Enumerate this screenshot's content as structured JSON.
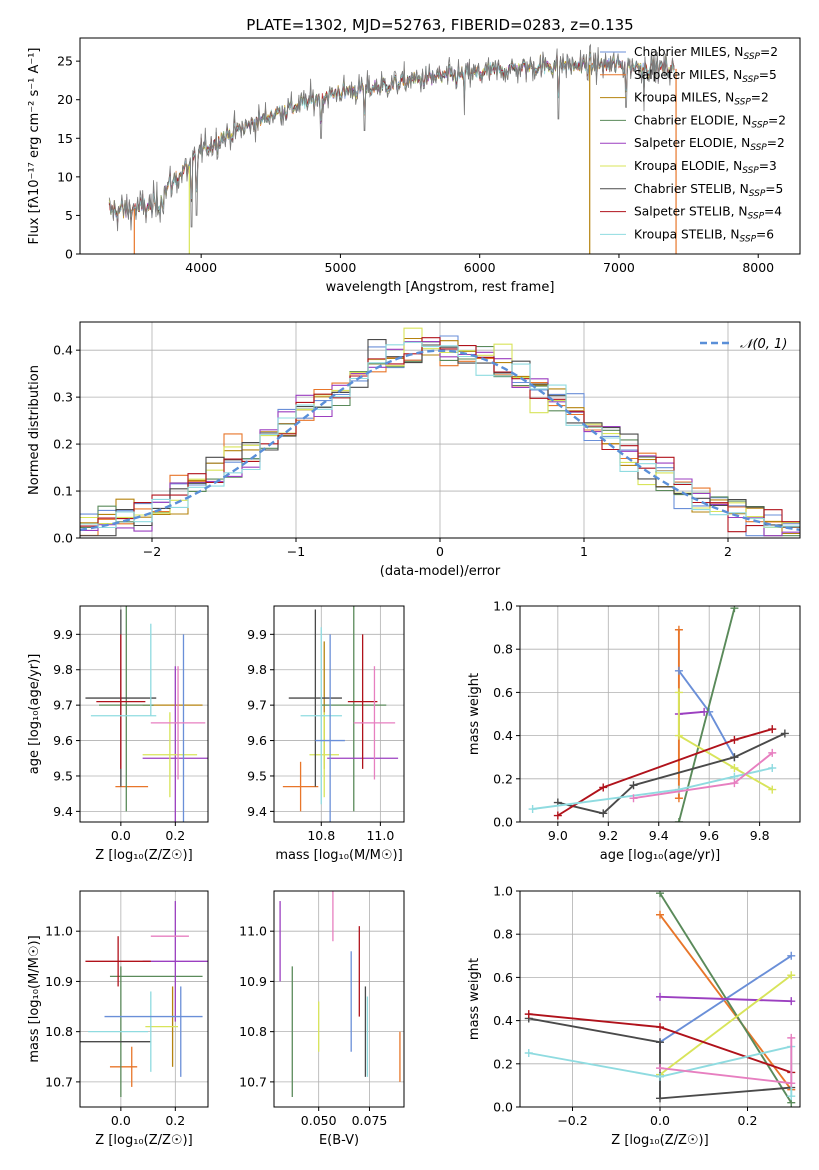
{
  "figure": {
    "title": "PLATE=1302, MJD=52763, FIBERID=0283, z=0.135"
  },
  "models": [
    {
      "name": "Chabrier MILES",
      "nssp": "2",
      "color": "#6a8fd8"
    },
    {
      "name": "Salpeter MILES",
      "nssp": "5",
      "color": "#e8762a"
    },
    {
      "name": "Kroupa MILES",
      "nssp": "2",
      "color": "#b5830e"
    },
    {
      "name": "Chabrier ELODIE",
      "nssp": "2",
      "color": "#5a8a5a"
    },
    {
      "name": "Salpeter ELODIE",
      "nssp": "2",
      "color": "#9b3fc0"
    },
    {
      "name": "Kroupa ELODIE",
      "nssp": "3",
      "color": "#d8e45a"
    },
    {
      "name": "Chabrier STELIB",
      "nssp": "5",
      "color": "#4a4a4a"
    },
    {
      "name": "Salpeter STELIB",
      "nssp": "4",
      "color": "#b0121b"
    },
    {
      "name": "Kroupa STELIB",
      "nssp": "6",
      "color": "#8fdbe0"
    }
  ],
  "chart_data": [
    {
      "id": "spectrum",
      "type": "line",
      "xlabel": "wavelength [Angstrom, rest frame]",
      "ylabel": "Flux [fλ10⁻¹⁷ erg cm⁻² s⁻¹ A⁻¹]",
      "xlim": [
        3130,
        8300
      ],
      "ylim": [
        0,
        28
      ],
      "xticks": [
        4000,
        5000,
        6000,
        7000,
        8000
      ],
      "yticks": [
        0,
        5,
        10,
        15,
        20,
        25
      ],
      "legend_position": "top-right",
      "grid": false,
      "continuum_x": [
        3340,
        3600,
        3700,
        3750,
        3950,
        4000,
        4200,
        4500,
        4800,
        5000,
        5200,
        5500,
        6000,
        6500,
        6800,
        7000,
        7400
      ],
      "continuum_y": [
        5.5,
        6.0,
        6.5,
        8.5,
        12.0,
        13.5,
        15.5,
        18.0,
        20.0,
        21.0,
        21.5,
        22.5,
        23.5,
        24.5,
        24.5,
        24.5,
        24.0
      ],
      "observed_noise": 1.6,
      "deep_absorption": [
        {
          "x": 3933,
          "y": 3.5
        },
        {
          "x": 3968,
          "y": 5.0
        },
        {
          "x": 4861,
          "y": 15.0
        },
        {
          "x": 5175,
          "y": 16.0
        },
        {
          "x": 5890,
          "y": 18.0
        },
        {
          "x": 6563,
          "y": 17.5
        },
        {
          "x": 7050,
          "y": 19.0
        },
        {
          "x": 7180,
          "y": 18.5
        }
      ],
      "spikes_to_zero": [
        {
          "x": 3520,
          "color": "#e8762a"
        },
        {
          "x": 3915,
          "color": "#d8e45a"
        },
        {
          "x": 6790,
          "color": "#b5830e"
        },
        {
          "x": 7410,
          "color": "#e8762a"
        }
      ]
    },
    {
      "id": "residuals",
      "type": "histogram",
      "xlabel": "(data-model)/error",
      "ylabel": "Normed distribution",
      "xlim": [
        -2.5,
        2.5
      ],
      "ylim": [
        0,
        0.46
      ],
      "xticks": [
        -2,
        -1,
        0,
        1,
        2
      ],
      "yticks": [
        0.0,
        0.1,
        0.2,
        0.3,
        0.4
      ],
      "grid": true,
      "legend_position": "top-right",
      "reference_label": "𝒩(0, 1)",
      "reference_color": "#5a8fd8",
      "bins": 40,
      "jitter": 0.03
    },
    {
      "id": "age_vs_Z",
      "type": "errorbar",
      "xlabel": "Z [log₁₀(Z/Z☉)]",
      "ylabel": "age  [log₁₀(age/yr)]",
      "xlim": [
        -0.15,
        0.32
      ],
      "ylim": [
        9.37,
        9.98
      ],
      "xticks": [
        0.0,
        0.2
      ],
      "yticks": [
        9.4,
        9.5,
        9.6,
        9.7,
        9.8,
        9.9
      ],
      "grid": true,
      "points": [
        {
          "x": 0.04,
          "y": 9.47,
          "xerr": 0.06,
          "yerr": 0.0,
          "color": "#e8762a"
        },
        {
          "x": 0.19,
          "y": 9.7,
          "xerr": 0.11,
          "yerr": 0.0,
          "color": "#b5830e"
        },
        {
          "x": 0.02,
          "y": 9.7,
          "xerr": 0.1,
          "yerr": 0.3,
          "color": "#5a8a5a"
        },
        {
          "x": 0.2,
          "y": 9.55,
          "xerr": 0.12,
          "yerr": 0.26,
          "color": "#9b3fc0"
        },
        {
          "x": 0.18,
          "y": 9.56,
          "xerr": 0.1,
          "yerr": 0.12,
          "color": "#d8e45a"
        },
        {
          "x": 0.0,
          "y": 9.72,
          "xerr": 0.13,
          "yerr": 0.25,
          "color": "#4a4a4a"
        },
        {
          "x": 0.0,
          "y": 9.71,
          "xerr": 0.09,
          "yerr": 0.19,
          "color": "#b0121b"
        },
        {
          "x": 0.01,
          "y": 9.67,
          "xerr": 0.12,
          "yerr": 0.0,
          "color": "#8fdbe0"
        },
        {
          "x": 0.11,
          "y": 9.8,
          "xerr": 0.0,
          "yerr": 0.13,
          "color": "#8fdbe0"
        },
        {
          "x": 0.23,
          "y": 9.55,
          "xerr": 0.0,
          "yerr": 0.35,
          "color": "#6a8fd8"
        },
        {
          "x": 0.21,
          "y": 9.65,
          "xerr": 0.1,
          "yerr": 0.16,
          "color": "#e77fc0"
        }
      ]
    },
    {
      "id": "age_vs_mass",
      "type": "errorbar",
      "xlabel": "mass [log₁₀(M/M☉)]",
      "ylabel": "",
      "xlim": [
        10.64,
        11.08
      ],
      "ylim": [
        9.37,
        9.98
      ],
      "xticks": [
        10.8,
        11.0
      ],
      "yticks": [
        9.4,
        9.5,
        9.6,
        9.7,
        9.8,
        9.9
      ],
      "grid": true,
      "points": [
        {
          "x": 10.73,
          "y": 9.47,
          "xerr": 0.06,
          "yerr": 0.07,
          "color": "#e8762a"
        },
        {
          "x": 10.81,
          "y": 9.7,
          "xerr": 0.0,
          "yerr": 0.18,
          "color": "#b5830e"
        },
        {
          "x": 10.91,
          "y": 9.7,
          "xerr": 0.11,
          "yerr": 0.3,
          "color": "#5a8a5a"
        },
        {
          "x": 10.94,
          "y": 9.55,
          "xerr": 0.12,
          "yerr": 0.0,
          "color": "#9b3fc0"
        },
        {
          "x": 10.81,
          "y": 9.56,
          "xerr": 0.05,
          "yerr": 0.12,
          "color": "#d8e45a"
        },
        {
          "x": 10.78,
          "y": 9.72,
          "xerr": 0.09,
          "yerr": 0.25,
          "color": "#4a4a4a"
        },
        {
          "x": 10.94,
          "y": 9.71,
          "xerr": 0.05,
          "yerr": 0.19,
          "color": "#b0121b"
        },
        {
          "x": 10.8,
          "y": 9.67,
          "xerr": 0.07,
          "yerr": 0.25,
          "color": "#8fdbe0"
        },
        {
          "x": 10.83,
          "y": 9.6,
          "xerr": 0.05,
          "yerr": 0.3,
          "color": "#6a8fd8"
        },
        {
          "x": 10.98,
          "y": 9.65,
          "xerr": 0.07,
          "yerr": 0.16,
          "color": "#e77fc0"
        }
      ]
    },
    {
      "id": "weight_vs_age",
      "type": "line",
      "xlabel": "age  [log₁₀(age/yr)]",
      "ylabel": "mass weight",
      "xlim": [
        8.85,
        9.96
      ],
      "ylim": [
        0,
        1
      ],
      "xticks": [
        9.0,
        9.2,
        9.4,
        9.6,
        9.8
      ],
      "yticks": [
        0.0,
        0.2,
        0.4,
        0.6,
        0.8,
        1.0
      ],
      "grid": true,
      "series": [
        {
          "color": "#e8762a",
          "x": [
            9.48,
            9.48
          ],
          "y": [
            0.89,
            0.11
          ]
        },
        {
          "color": "#6a8fd8",
          "x": [
            9.48,
            9.6,
            9.7
          ],
          "y": [
            0.7,
            0.51,
            0.3
          ]
        },
        {
          "color": "#5a8a5a",
          "x": [
            9.48,
            9.7
          ],
          "y": [
            0.0,
            0.99
          ]
        },
        {
          "color": "#9b3fc0",
          "x": [
            9.48,
            9.58
          ],
          "y": [
            0.5,
            0.51
          ]
        },
        {
          "color": "#d8e45a",
          "x": [
            9.48,
            9.48,
            9.7,
            9.85
          ],
          "y": [
            0.6,
            0.4,
            0.25,
            0.15
          ]
        },
        {
          "color": "#4a4a4a",
          "x": [
            9.0,
            9.18,
            9.3,
            9.7,
            9.9
          ],
          "y": [
            0.09,
            0.04,
            0.17,
            0.3,
            0.41
          ]
        },
        {
          "color": "#b0121b",
          "x": [
            9.0,
            9.18,
            9.7,
            9.85
          ],
          "y": [
            0.03,
            0.16,
            0.38,
            0.43
          ]
        },
        {
          "color": "#8fdbe0",
          "x": [
            8.9,
            9.48,
            9.7,
            9.85
          ],
          "y": [
            0.06,
            0.15,
            0.21,
            0.25
          ]
        },
        {
          "color": "#e77fc0",
          "x": [
            9.3,
            9.7,
            9.85
          ],
          "y": [
            0.11,
            0.18,
            0.32
          ]
        }
      ]
    },
    {
      "id": "mass_vs_Z",
      "type": "errorbar",
      "xlabel": "Z [log₁₀(Z/Z☉)]",
      "ylabel": "mass [log₁₀(M/M☉)]",
      "xlim": [
        -0.15,
        0.32
      ],
      "ylim": [
        10.65,
        11.08
      ],
      "xticks": [
        0.0,
        0.2
      ],
      "yticks": [
        10.7,
        10.8,
        10.9,
        11.0
      ],
      "grid": true,
      "points": [
        {
          "x": 0.01,
          "y": 10.73,
          "xerr": 0.05,
          "yerr": 0.0,
          "color": "#e8762a"
        },
        {
          "x": 0.04,
          "y": 10.73,
          "xerr": 0.0,
          "yerr": 0.04,
          "color": "#e8762a"
        },
        {
          "x": 0.19,
          "y": 10.81,
          "xerr": 0.0,
          "yerr": 0.08,
          "color": "#b5830e"
        },
        {
          "x": 0.13,
          "y": 10.91,
          "xerr": 0.17,
          "yerr": 0.0,
          "color": "#5a8a5a"
        },
        {
          "x": 0.0,
          "y": 10.8,
          "xerr": 0.0,
          "yerr": 0.13,
          "color": "#5a8a5a"
        },
        {
          "x": 0.2,
          "y": 10.94,
          "xerr": 0.12,
          "yerr": 0.12,
          "color": "#9b3fc0"
        },
        {
          "x": 0.15,
          "y": 10.81,
          "xerr": 0.06,
          "yerr": 0.0,
          "color": "#d8e45a"
        },
        {
          "x": -0.02,
          "y": 10.78,
          "xerr": 0.13,
          "yerr": 0.0,
          "color": "#4a4a4a"
        },
        {
          "x": -0.01,
          "y": 10.94,
          "xerr": 0.12,
          "yerr": 0.05,
          "color": "#b0121b"
        },
        {
          "x": -0.01,
          "y": 10.8,
          "xerr": 0.11,
          "yerr": 0.0,
          "color": "#8fdbe0"
        },
        {
          "x": 0.11,
          "y": 10.8,
          "xerr": 0.0,
          "yerr": 0.08,
          "color": "#8fdbe0"
        },
        {
          "x": 0.12,
          "y": 10.83,
          "xerr": 0.18,
          "yerr": 0.0,
          "color": "#6a8fd8"
        },
        {
          "x": 0.22,
          "y": 10.8,
          "xerr": 0.0,
          "yerr": 0.09,
          "color": "#6a8fd8"
        },
        {
          "x": 0.18,
          "y": 10.99,
          "xerr": 0.07,
          "yerr": 0.0,
          "color": "#e77fc0"
        }
      ]
    },
    {
      "id": "mass_vs_ebv",
      "type": "errorbar",
      "xlabel": "E(B-V)",
      "ylabel": "",
      "xlim": [
        0.028,
        0.092
      ],
      "ylim": [
        10.65,
        11.08
      ],
      "xticks": [
        0.05,
        0.075
      ],
      "yticks": [
        10.7,
        10.8,
        10.9,
        11.0
      ],
      "grid": true,
      "points": [
        {
          "x": 0.031,
          "y": 10.98,
          "xerr": 0.0,
          "yerr": 0.08,
          "color": "#9b3fc0"
        },
        {
          "x": 0.037,
          "y": 10.8,
          "xerr": 0.0,
          "yerr": 0.13,
          "color": "#5a8a5a"
        },
        {
          "x": 0.05,
          "y": 10.81,
          "xerr": 0.0,
          "yerr": 0.05,
          "color": "#d8e45a"
        },
        {
          "x": 0.057,
          "y": 11.06,
          "xerr": 0.0,
          "yerr": 0.08,
          "color": "#e77fc0"
        },
        {
          "x": 0.066,
          "y": 10.86,
          "xerr": 0.0,
          "yerr": 0.1,
          "color": "#6a8fd8"
        },
        {
          "x": 0.07,
          "y": 10.92,
          "xerr": 0.0,
          "yerr": 0.09,
          "color": "#b0121b"
        },
        {
          "x": 0.073,
          "y": 10.8,
          "xerr": 0.0,
          "yerr": 0.09,
          "color": "#4a4a4a"
        },
        {
          "x": 0.074,
          "y": 10.79,
          "xerr": 0.0,
          "yerr": 0.08,
          "color": "#8fdbe0"
        },
        {
          "x": 0.09,
          "y": 10.75,
          "xerr": 0.0,
          "yerr": 0.05,
          "color": "#e8762a"
        }
      ]
    },
    {
      "id": "weight_vs_Z",
      "type": "line",
      "xlabel": "Z [log₁₀(Z/Z☉)]",
      "ylabel": "mass weight",
      "xlim": [
        -0.32,
        0.32
      ],
      "ylim": [
        0,
        1
      ],
      "xticks": [
        -0.2,
        0.0,
        0.2
      ],
      "yticks": [
        0.0,
        0.2,
        0.4,
        0.6,
        0.8,
        1.0
      ],
      "grid": true,
      "series": [
        {
          "color": "#e8762a",
          "x": [
            0.0,
            0.3
          ],
          "y": [
            0.89,
            0.08
          ]
        },
        {
          "color": "#6a8fd8",
          "x": [
            0.0,
            0.3
          ],
          "y": [
            0.3,
            0.7
          ]
        },
        {
          "color": "#5a8a5a",
          "x": [
            0.0,
            0.3
          ],
          "y": [
            0.99,
            0.02
          ]
        },
        {
          "color": "#9b3fc0",
          "x": [
            0.0,
            0.3
          ],
          "y": [
            0.51,
            0.49
          ]
        },
        {
          "color": "#d8e45a",
          "x": [
            0.0,
            0.3
          ],
          "y": [
            0.15,
            0.61
          ]
        },
        {
          "color": "#4a4a4a",
          "x": [
            -0.3,
            0.0,
            0.0,
            0.3
          ],
          "y": [
            0.41,
            0.3,
            0.04,
            0.09
          ]
        },
        {
          "color": "#b0121b",
          "x": [
            -0.3,
            0.0,
            0.3
          ],
          "y": [
            0.43,
            0.37,
            0.16
          ]
        },
        {
          "color": "#8fdbe0",
          "x": [
            -0.3,
            0.0,
            0.3,
            0.3
          ],
          "y": [
            0.25,
            0.14,
            0.28,
            0.05
          ]
        },
        {
          "color": "#e77fc0",
          "x": [
            0.0,
            0.3,
            0.3
          ],
          "y": [
            0.18,
            0.11,
            0.32
          ]
        }
      ]
    }
  ]
}
